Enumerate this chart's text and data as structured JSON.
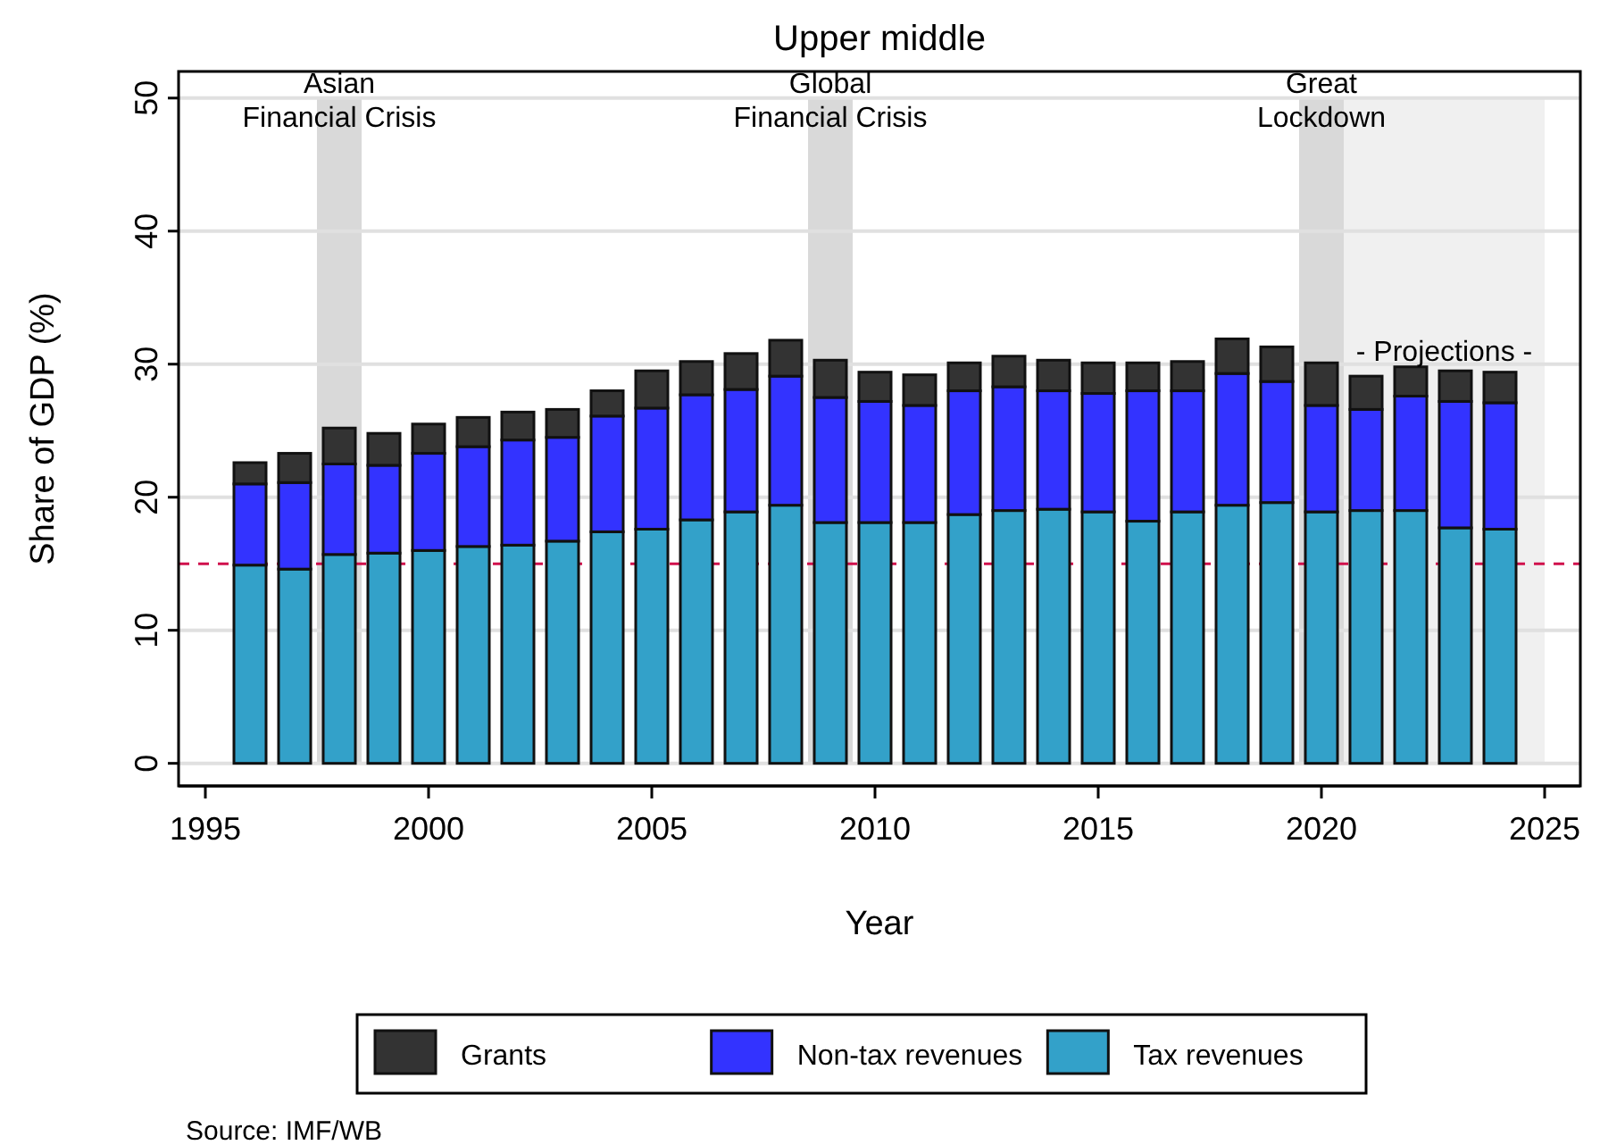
{
  "chart_data": {
    "type": "bar",
    "stacked": true,
    "title": "Upper middle",
    "xlabel": "Year",
    "ylabel": "Share of GDP (%)",
    "x": [
      1996,
      1997,
      1998,
      1999,
      2000,
      2001,
      2002,
      2003,
      2004,
      2005,
      2006,
      2007,
      2008,
      2009,
      2010,
      2011,
      2012,
      2013,
      2014,
      2015,
      2016,
      2017,
      2018,
      2019,
      2020,
      2021,
      2022,
      2023,
      2024
    ],
    "series": [
      {
        "name": "Tax revenues",
        "color": "#33a1c9",
        "values": [
          14.9,
          14.6,
          15.7,
          15.8,
          16.0,
          16.3,
          16.4,
          16.7,
          17.4,
          17.6,
          18.3,
          18.9,
          19.4,
          18.1,
          18.1,
          18.1,
          18.7,
          19.0,
          19.1,
          18.9,
          18.2,
          18.9,
          19.4,
          19.6,
          18.9,
          19.0,
          19.0,
          17.7,
          17.6
        ]
      },
      {
        "name": "Non-tax revenues",
        "color": "#3333ff",
        "values": [
          6.1,
          6.5,
          6.8,
          6.6,
          7.3,
          7.5,
          7.9,
          7.8,
          8.7,
          9.1,
          9.4,
          9.2,
          9.7,
          9.4,
          9.1,
          8.8,
          9.3,
          9.3,
          8.9,
          8.9,
          9.8,
          9.1,
          9.9,
          9.1,
          8.0,
          7.6,
          8.6,
          9.5,
          9.5
        ]
      },
      {
        "name": "Grants",
        "color": "#333333",
        "values": [
          1.6,
          2.2,
          2.7,
          2.4,
          2.2,
          2.2,
          2.1,
          2.1,
          1.9,
          2.8,
          2.5,
          2.7,
          2.7,
          2.8,
          2.2,
          2.3,
          2.1,
          2.3,
          2.3,
          2.3,
          2.1,
          2.2,
          2.6,
          2.6,
          3.2,
          2.5,
          2.2,
          2.3,
          2.3
        ]
      }
    ],
    "xlim": [
      1994.4,
      2025.8
    ],
    "xticks": [
      1995,
      2000,
      2005,
      2010,
      2015,
      2020,
      2025
    ],
    "ylim": [
      -1.7,
      52
    ],
    "yticks": [
      0,
      10,
      20,
      30,
      40,
      50
    ],
    "grid": "y",
    "legend": "bottom",
    "ref_lines": [
      {
        "axis": "y",
        "value": 15,
        "color": "#d0104c",
        "line_style": "dashed"
      }
    ],
    "bands": [
      {
        "axis": "x",
        "from": 1997.5,
        "to": 1998.5,
        "label": "Asian\nFinancial Crisis",
        "color": "#d9d9d9"
      },
      {
        "axis": "x",
        "from": 2008.5,
        "to": 2009.5,
        "label": "Global\nFinancial Crisis",
        "color": "#d9d9d9"
      },
      {
        "axis": "x",
        "from": 2019.5,
        "to": 2020.5,
        "label": "Great\nLockdown",
        "color": "#d9d9d9"
      },
      {
        "axis": "x",
        "from": 2020.5,
        "to": 2025,
        "label": "- Projections -",
        "color": "#f0f0f0"
      }
    ],
    "annotations": [
      "Source: IMF/WB"
    ]
  }
}
